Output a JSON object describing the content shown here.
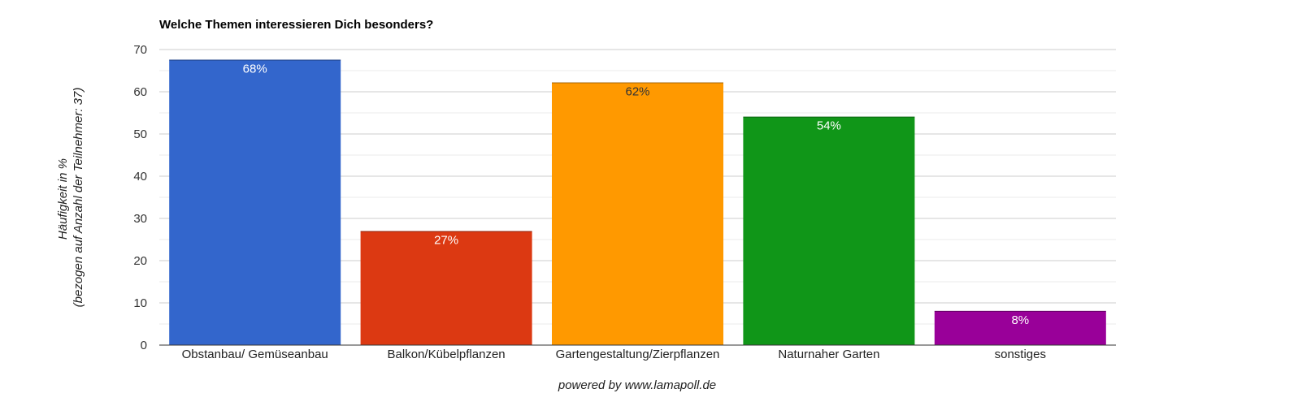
{
  "chart_data": {
    "type": "bar",
    "title": "Welche Themen interessieren Dich besonders?",
    "ylabel_lines": [
      "Häufigkeit in %",
      "(bezogen auf Anzahl der Teilnehmer: 37)"
    ],
    "xlabel": "",
    "ylim": [
      0,
      70
    ],
    "yticks": [
      0,
      10,
      20,
      30,
      40,
      50,
      60,
      70
    ],
    "grid": true,
    "categories": [
      "Obstanbau/ Gemüseanbau",
      "Balkon/Kübelpflanzen",
      "Gartengestaltung/Zierpflanzen",
      "Naturnaher Garten",
      "sonstiges"
    ],
    "values": [
      67.6,
      27.0,
      62.2,
      54.1,
      8.1
    ],
    "data_labels": [
      "68%",
      "27%",
      "62%",
      "54%",
      "8%"
    ],
    "colors": [
      "#3366cc",
      "#dc3912",
      "#ff9900",
      "#109618",
      "#990099"
    ],
    "label_colors": [
      "#ffffff",
      "#ffffff",
      "#333333",
      "#ffffff",
      "#ffffff"
    ]
  },
  "footer": {
    "text": "powered by www.lamapoll.de"
  }
}
